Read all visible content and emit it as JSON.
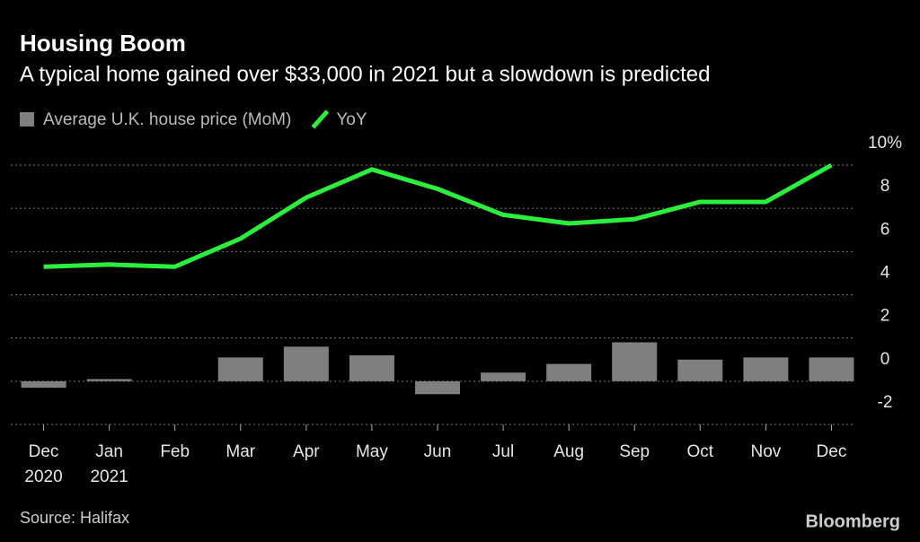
{
  "chart_data": {
    "type": "combo",
    "title": "Housing Boom",
    "subtitle": "A typical home gained over $33,000 in 2021 but a slowdown is predicted",
    "categories": [
      "Dec\n2020",
      "Jan\n2021",
      "Feb",
      "Mar",
      "Apr",
      "May",
      "Jun",
      "Jul",
      "Aug",
      "Sep",
      "Oct",
      "Nov",
      "Dec"
    ],
    "series": [
      {
        "name": "Average U.K. house price (MoM)",
        "type": "bar",
        "color": "#7f7f7f",
        "values": [
          -0.3,
          0.1,
          0.0,
          1.1,
          1.6,
          1.2,
          -0.6,
          0.4,
          0.8,
          1.8,
          1.0,
          1.1,
          1.1
        ]
      },
      {
        "name": "YoY",
        "type": "line",
        "color": "#2bef3b",
        "values": [
          5.3,
          5.4,
          5.3,
          6.6,
          8.5,
          9.8,
          8.9,
          7.7,
          7.3,
          7.5,
          8.3,
          8.3,
          10.0
        ]
      }
    ],
    "ylim": [
      -2,
      10
    ],
    "yticks": [
      -2,
      0,
      2,
      4,
      6,
      8,
      {
        "value": 10,
        "label": "10%"
      }
    ],
    "grid": true,
    "source": "Source: Halifax",
    "brand": "Bloomberg"
  }
}
